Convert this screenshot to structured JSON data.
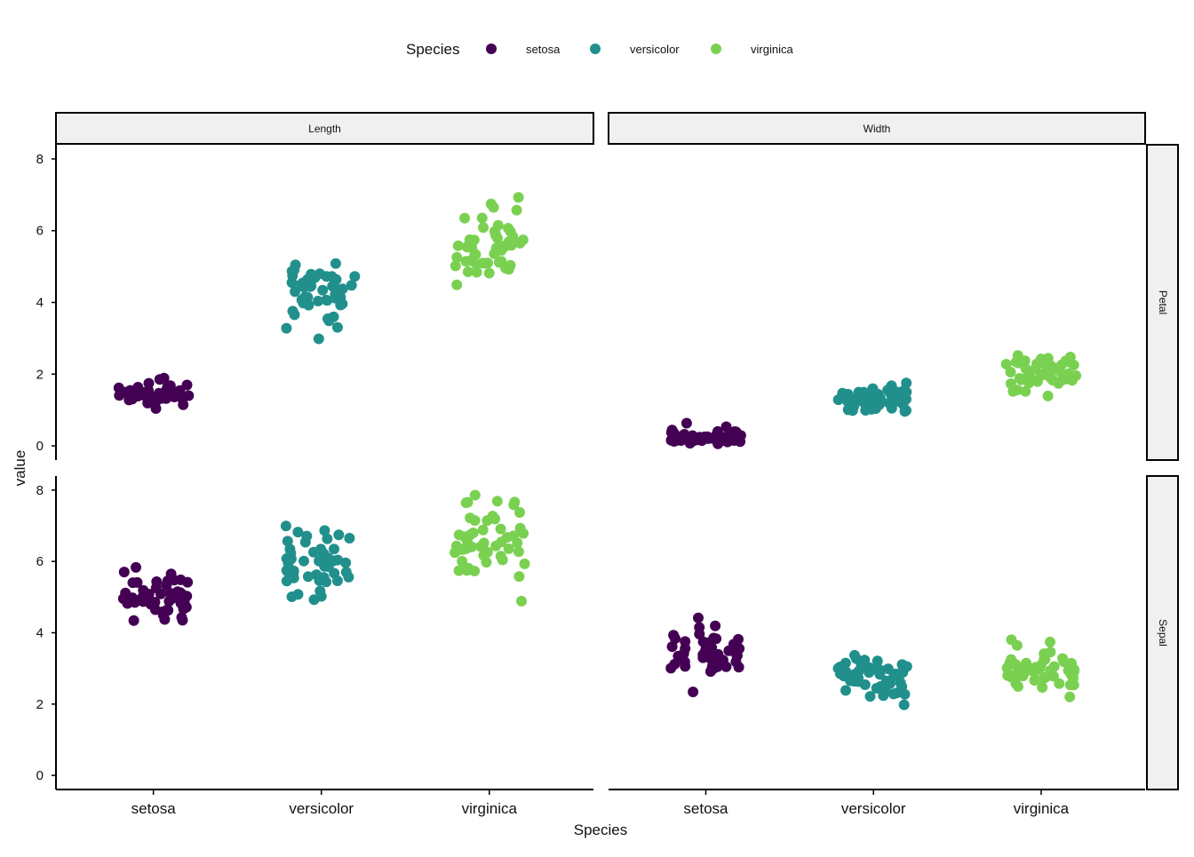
{
  "chart_data": {
    "type": "scatter",
    "xlabel": "Species",
    "ylabel": "value",
    "legend": {
      "title": "Species",
      "position": "top",
      "items": [
        {
          "label": "setosa",
          "color": "#440154"
        },
        {
          "label": "versicolor",
          "color": "#21908C"
        },
        {
          "label": "virginica",
          "color": "#7AD151"
        }
      ]
    },
    "categories": [
      "setosa",
      "versicolor",
      "virginica"
    ],
    "facet_columns": [
      "Length",
      "Width"
    ],
    "facet_rows": [
      "Petal",
      "Sepal"
    ],
    "ylim": [
      0,
      8
    ],
    "yticks": [
      "0",
      "2",
      "4",
      "6",
      "8"
    ],
    "jitter": true,
    "facets": [
      {
        "row": "Petal",
        "column": "Length",
        "series": [
          {
            "name": "setosa",
            "values": [
              1.4,
              1.4,
              1.3,
              1.5,
              1.4,
              1.7,
              1.4,
              1.5,
              1.4,
              1.5,
              1.5,
              1.6,
              1.4,
              1.1,
              1.2,
              1.5,
              1.3,
              1.4,
              1.7,
              1.5,
              1.7,
              1.5,
              1.0,
              1.7,
              1.9,
              1.6,
              1.6,
              1.5,
              1.4,
              1.6,
              1.6,
              1.5,
              1.5,
              1.4,
              1.5,
              1.2,
              1.3,
              1.4,
              1.3,
              1.5,
              1.3,
              1.3,
              1.3,
              1.6,
              1.9,
              1.4,
              1.6,
              1.4,
              1.5,
              1.4
            ]
          },
          {
            "name": "versicolor",
            "values": [
              4.7,
              4.5,
              4.9,
              4.0,
              4.6,
              4.5,
              4.7,
              3.3,
              4.6,
              3.9,
              3.5,
              4.2,
              4.0,
              4.7,
              3.6,
              4.4,
              4.5,
              4.1,
              4.5,
              3.9,
              4.8,
              4.0,
              4.9,
              4.7,
              4.3,
              4.4,
              4.8,
              5.0,
              4.5,
              3.5,
              3.8,
              3.7,
              3.9,
              5.1,
              4.5,
              4.5,
              4.7,
              4.4,
              4.1,
              4.0,
              4.4,
              4.6,
              4.0,
              3.3,
              4.2,
              4.2,
              4.2,
              4.3,
              3.0,
              4.1
            ]
          },
          {
            "name": "virginica",
            "values": [
              6.0,
              5.1,
              5.9,
              5.6,
              5.8,
              6.6,
              4.5,
              6.3,
              5.8,
              6.1,
              5.1,
              5.3,
              5.5,
              5.0,
              5.1,
              5.3,
              5.5,
              6.7,
              6.9,
              5.0,
              5.7,
              4.9,
              6.7,
              4.9,
              5.7,
              6.0,
              4.8,
              4.9,
              5.6,
              5.8,
              6.1,
              6.4,
              5.6,
              5.1,
              5.6,
              6.1,
              5.6,
              5.5,
              4.8,
              5.4,
              5.6,
              5.1,
              5.1,
              5.9,
              5.7,
              5.2,
              5.0,
              5.2,
              5.4,
              5.1
            ]
          }
        ]
      },
      {
        "row": "Petal",
        "column": "Width",
        "series": [
          {
            "name": "setosa",
            "values": [
              0.2,
              0.2,
              0.2,
              0.2,
              0.2,
              0.4,
              0.3,
              0.2,
              0.2,
              0.1,
              0.2,
              0.2,
              0.1,
              0.1,
              0.2,
              0.4,
              0.4,
              0.3,
              0.3,
              0.3,
              0.2,
              0.4,
              0.2,
              0.5,
              0.2,
              0.2,
              0.4,
              0.2,
              0.2,
              0.2,
              0.2,
              0.4,
              0.1,
              0.2,
              0.2,
              0.2,
              0.2,
              0.1,
              0.2,
              0.2,
              0.3,
              0.3,
              0.2,
              0.6,
              0.4,
              0.3,
              0.2,
              0.2,
              0.2,
              0.2
            ]
          },
          {
            "name": "versicolor",
            "values": [
              1.4,
              1.5,
              1.5,
              1.3,
              1.5,
              1.3,
              1.6,
              1.0,
              1.3,
              1.4,
              1.0,
              1.5,
              1.0,
              1.4,
              1.3,
              1.4,
              1.5,
              1.0,
              1.5,
              1.1,
              1.8,
              1.3,
              1.5,
              1.2,
              1.3,
              1.4,
              1.4,
              1.7,
              1.5,
              1.0,
              1.1,
              1.0,
              1.2,
              1.6,
              1.5,
              1.6,
              1.5,
              1.3,
              1.3,
              1.3,
              1.2,
              1.4,
              1.2,
              1.0,
              1.3,
              1.2,
              1.3,
              1.3,
              1.1,
              1.3
            ]
          },
          {
            "name": "virginica",
            "values": [
              2.5,
              1.9,
              2.1,
              1.8,
              2.2,
              2.1,
              1.7,
              1.8,
              1.8,
              2.5,
              2.0,
              1.9,
              2.1,
              2.0,
              2.4,
              2.3,
              1.8,
              2.2,
              2.3,
              1.5,
              2.3,
              2.0,
              2.0,
              1.8,
              2.1,
              1.8,
              1.8,
              1.8,
              2.1,
              1.6,
              1.9,
              2.0,
              2.2,
              1.5,
              1.4,
              2.3,
              2.4,
              1.8,
              1.8,
              2.1,
              2.4,
              2.3,
              1.9,
              2.3,
              2.5,
              2.3,
              1.9,
              2.0,
              2.3,
              1.8
            ]
          }
        ]
      },
      {
        "row": "Sepal",
        "column": "Length",
        "series": [
          {
            "name": "setosa",
            "values": [
              5.1,
              4.9,
              4.7,
              4.6,
              5.0,
              5.4,
              4.6,
              5.0,
              4.4,
              4.9,
              5.4,
              4.8,
              4.8,
              4.3,
              5.8,
              5.7,
              5.4,
              5.1,
              5.7,
              5.1,
              5.4,
              5.1,
              4.6,
              5.1,
              4.8,
              5.0,
              5.0,
              5.2,
              5.2,
              4.7,
              4.8,
              5.4,
              5.2,
              5.5,
              4.9,
              5.0,
              5.5,
              4.9,
              4.4,
              5.1,
              5.0,
              4.5,
              4.4,
              5.0,
              5.1,
              4.8,
              5.1,
              4.6,
              5.3,
              5.0
            ]
          },
          {
            "name": "versicolor",
            "values": [
              7.0,
              6.4,
              6.9,
              5.5,
              6.5,
              5.7,
              6.3,
              4.9,
              6.6,
              5.2,
              5.0,
              5.9,
              6.0,
              6.1,
              5.6,
              6.7,
              5.6,
              5.8,
              6.2,
              5.6,
              5.9,
              6.1,
              6.3,
              6.1,
              6.4,
              6.6,
              6.8,
              6.7,
              6.0,
              5.7,
              5.5,
              5.5,
              5.8,
              6.0,
              5.4,
              6.0,
              6.7,
              6.3,
              5.6,
              5.5,
              5.5,
              6.1,
              5.8,
              5.0,
              5.6,
              5.7,
              5.7,
              6.2,
              5.1,
              5.7
            ]
          },
          {
            "name": "virginica",
            "values": [
              6.3,
              5.8,
              7.1,
              6.3,
              6.5,
              7.6,
              4.9,
              7.3,
              6.7,
              7.2,
              6.5,
              6.4,
              6.8,
              5.7,
              5.8,
              6.4,
              6.5,
              7.7,
              7.7,
              6.0,
              6.9,
              5.6,
              7.7,
              6.3,
              6.7,
              7.2,
              6.2,
              6.1,
              6.4,
              7.2,
              7.4,
              7.9,
              6.4,
              6.3,
              6.1,
              7.7,
              6.3,
              6.4,
              6.0,
              6.9,
              6.7,
              6.9,
              5.8,
              6.8,
              6.7,
              6.7,
              6.3,
              6.5,
              6.2,
              5.9
            ]
          }
        ]
      },
      {
        "row": "Sepal",
        "column": "Width",
        "series": [
          {
            "name": "setosa",
            "values": [
              3.5,
              3.0,
              3.2,
              3.1,
              3.6,
              3.9,
              3.4,
              3.4,
              2.9,
              3.1,
              3.7,
              3.4,
              3.0,
              3.0,
              4.0,
              4.4,
              3.9,
              3.5,
              3.8,
              3.8,
              3.4,
              3.7,
              3.6,
              3.3,
              3.4,
              3.0,
              3.4,
              3.5,
              3.4,
              3.2,
              3.1,
              3.4,
              4.1,
              4.2,
              3.1,
              3.2,
              3.5,
              3.6,
              3.0,
              3.4,
              3.5,
              2.3,
              3.2,
              3.5,
              3.8,
              3.0,
              3.8,
              3.2,
              3.7,
              3.3
            ]
          },
          {
            "name": "versicolor",
            "values": [
              3.2,
              3.2,
              3.1,
              2.3,
              2.8,
              2.8,
              3.3,
              2.4,
              2.9,
              2.7,
              2.0,
              3.0,
              2.2,
              2.9,
              2.9,
              3.1,
              3.0,
              2.7,
              2.2,
              2.5,
              3.2,
              2.8,
              2.5,
              2.8,
              2.9,
              3.0,
              2.8,
              3.0,
              2.9,
              2.6,
              2.4,
              2.4,
              2.7,
              2.7,
              3.0,
              3.4,
              3.1,
              2.3,
              3.0,
              2.5,
              2.6,
              3.0,
              2.6,
              2.3,
              2.7,
              3.0,
              2.9,
              2.9,
              2.5,
              2.8
            ]
          },
          {
            "name": "virginica",
            "values": [
              3.3,
              2.7,
              3.0,
              2.9,
              3.0,
              3.0,
              2.5,
              2.9,
              2.5,
              3.6,
              3.2,
              2.7,
              3.0,
              2.5,
              2.8,
              3.2,
              3.0,
              3.8,
              2.6,
              2.2,
              3.2,
              2.8,
              2.8,
              2.7,
              3.3,
              3.2,
              2.8,
              3.0,
              2.8,
              3.0,
              2.8,
              3.8,
              2.8,
              2.8,
              2.6,
              3.0,
              3.4,
              3.1,
              3.0,
              3.1,
              3.1,
              3.1,
              2.7,
              3.2,
              3.3,
              3.0,
              2.5,
              3.0,
              3.4,
              3.0
            ]
          }
        ]
      }
    ]
  }
}
